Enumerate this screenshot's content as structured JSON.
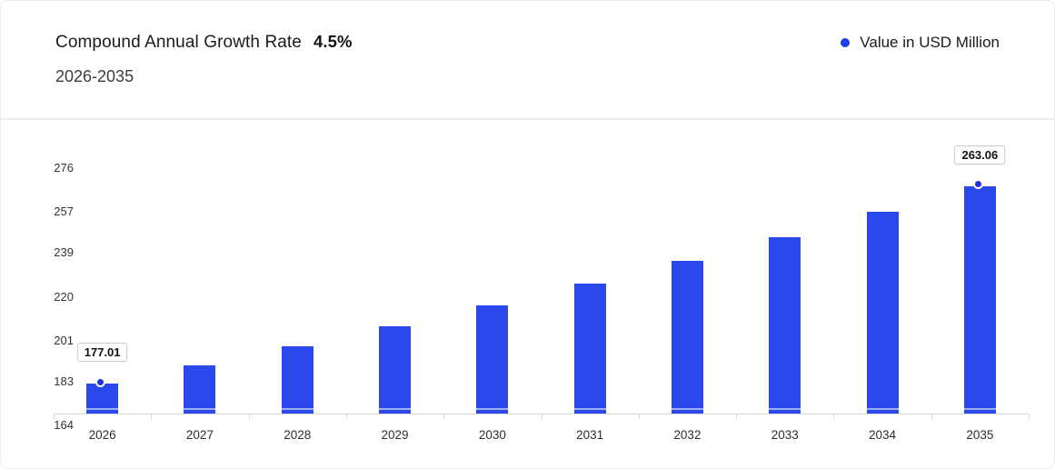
{
  "header": {
    "title": "Compound Annual Growth Rate",
    "cagr_value": "4.5%",
    "subtitle": "2026-2035",
    "legend": {
      "label": "Value in USD Million",
      "dot_color": "#1d3ee8"
    }
  },
  "chart_data": {
    "type": "bar",
    "title": "Compound Annual Growth Rate 4.5% 2026-2035",
    "xlabel": "",
    "ylabel": "Value in USD Million",
    "categories": [
      "2026",
      "2027",
      "2028",
      "2029",
      "2030",
      "2031",
      "2032",
      "2033",
      "2034",
      "2035"
    ],
    "series": [
      {
        "name": "Value in USD Million",
        "values": [
          177.01,
          184.98,
          193.3,
          202.0,
          211.09,
          220.59,
          230.51,
          240.89,
          251.72,
          263.06
        ]
      }
    ],
    "data_labels": [
      {
        "index": 0,
        "text": "177.01"
      },
      {
        "index": 9,
        "text": "263.06"
      }
    ],
    "y_ticks": [
      164,
      183,
      201,
      220,
      239,
      257,
      276
    ],
    "ylim": [
      164,
      276
    ],
    "grid": false,
    "legend_position": "top-right",
    "bar_color": "#2b48ec",
    "marker_color": "#1d35e4",
    "axis_color": "#d6d6d6"
  }
}
